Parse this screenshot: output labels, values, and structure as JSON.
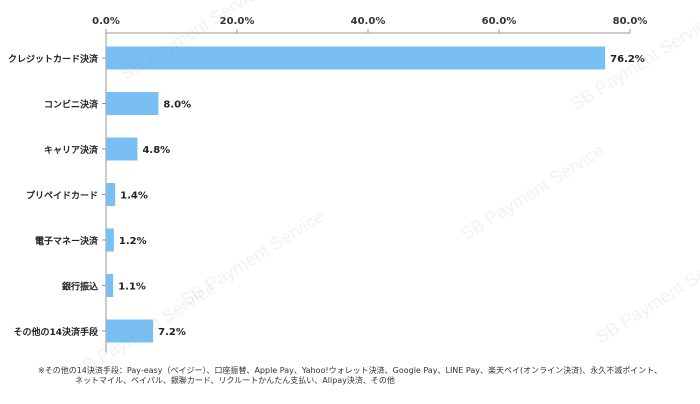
{
  "chart_data": {
    "type": "bar",
    "orientation": "horizontal",
    "categories": [
      "クレジットカード決済",
      "コンビニ決済",
      "キャリア決済",
      "プリペイドカード",
      "電子マネー決済",
      "銀行振込",
      "その他の14決済手段"
    ],
    "values": [
      76.2,
      8.0,
      4.8,
      1.4,
      1.2,
      1.1,
      7.2
    ],
    "value_labels": [
      "76.2%",
      "8.0%",
      "4.8%",
      "1.4%",
      "1.2%",
      "1.1%",
      "7.2%"
    ],
    "xlim": [
      0,
      80
    ],
    "xticks": [
      0,
      20,
      40,
      60,
      80
    ],
    "xtick_labels": [
      "0.0%",
      "20.0%",
      "40.0%",
      "60.0%",
      "80.0%"
    ],
    "axis_position": "top",
    "grid": false,
    "bar_color": "#79bff4"
  },
  "watermark": {
    "text": "SB Payment Service"
  },
  "footnote": {
    "line1": "※その他の14決済手段：Pay-easy（ペイジー）、口座振替、Apple Pay、Yahoo!ウォレット決済、Google Pay、LINE Pay、楽天ペイ(オンライン決済)、永久不滅ポイント、",
    "line2": "ネットマイル、ペイパル、銀聯カード、リクルートかんたん支払い、Alipay決済、その他"
  }
}
